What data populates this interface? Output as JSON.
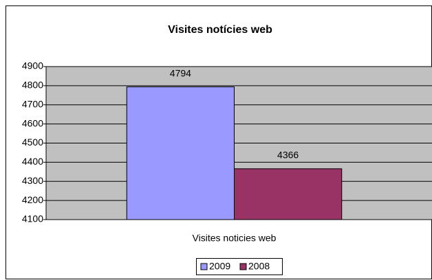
{
  "chart_data": {
    "type": "bar",
    "title": "Visites notícies web",
    "categories": [
      "Visites noticies web"
    ],
    "series": [
      {
        "name": "2009",
        "color": "#9999ff",
        "values": [
          4794
        ]
      },
      {
        "name": "2008",
        "color": "#993366",
        "values": [
          4366
        ]
      }
    ],
    "ylim": [
      4100,
      4900
    ],
    "yticks": [
      4100,
      4200,
      4300,
      4400,
      4500,
      4600,
      4700,
      4800,
      4900
    ],
    "grid": true,
    "legend": "bottom",
    "plot_background": "#c0c0c0",
    "data_labels": true
  }
}
